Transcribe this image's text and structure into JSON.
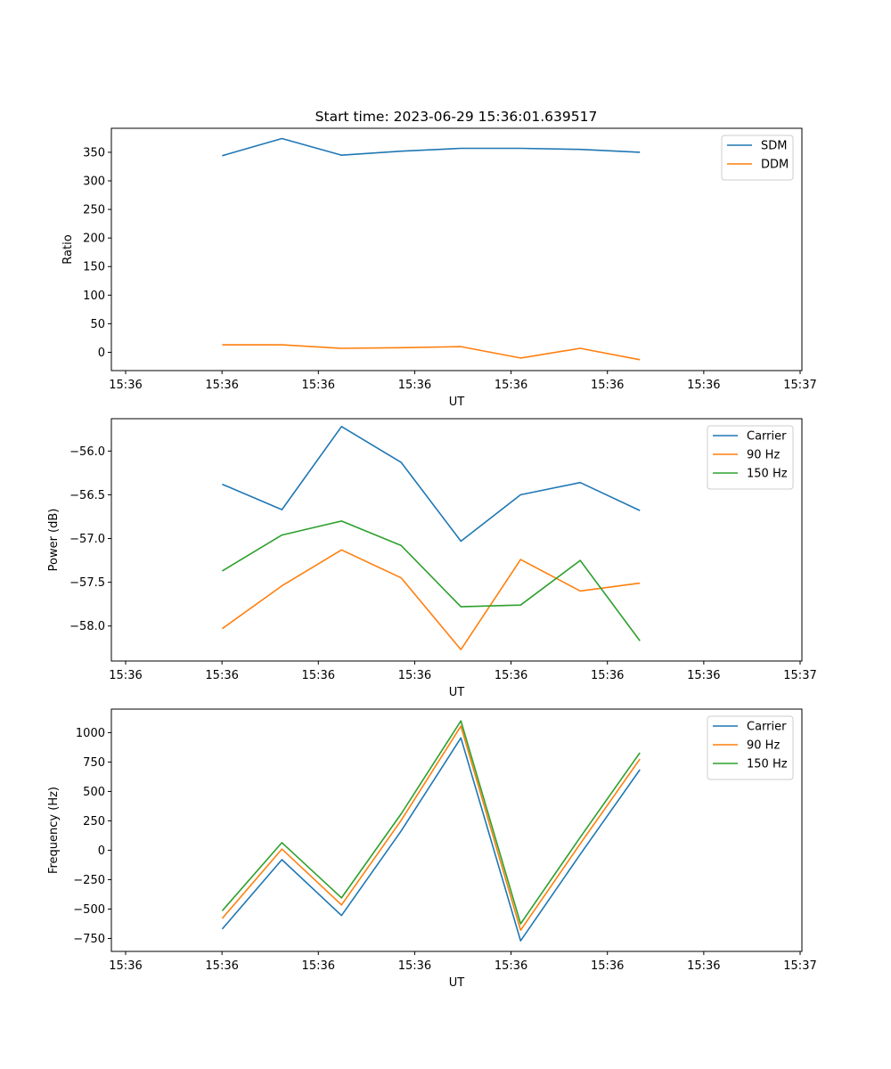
{
  "title": "Start time: 2023-06-29 15:36:01.639517",
  "chart_data": [
    {
      "type": "line",
      "title": "Start time: 2023-06-29 15:36:01.639517",
      "xlabel": "UT",
      "ylabel": "Ratio",
      "x": [
        "15:36:03.2",
        "15:36:03.9",
        "15:36:04.6",
        "15:36:05.3",
        "15:36:06.0",
        "15:36:06.7",
        "15:36:07.4",
        "15:36:08.1"
      ],
      "xlim": [
        "15:36:01.9",
        "15:36:10.0"
      ],
      "xtick_labels": [
        "15:36",
        "15:36",
        "15:36",
        "15:36",
        "15:36",
        "15:36",
        "15:36",
        "15:37"
      ],
      "ylim": [
        -32,
        392
      ],
      "yticks": [
        0,
        50,
        100,
        150,
        200,
        250,
        300,
        350
      ],
      "legend": "top-right",
      "series": [
        {
          "name": "SDM",
          "color": "#1f77b4",
          "values": [
            344,
            374,
            345,
            352,
            357,
            357,
            355,
            350
          ]
        },
        {
          "name": "DDM",
          "color": "#ff7f0e",
          "values": [
            13,
            13,
            7,
            8,
            10,
            -10,
            7,
            -13
          ]
        }
      ]
    },
    {
      "type": "line",
      "xlabel": "UT",
      "ylabel": "Power (dB)",
      "x": [
        "15:36:03.2",
        "15:36:03.9",
        "15:36:04.6",
        "15:36:05.3",
        "15:36:06.0",
        "15:36:06.7",
        "15:36:07.4",
        "15:36:08.1"
      ],
      "xlim": [
        "15:36:01.9",
        "15:36:10.0"
      ],
      "xtick_labels": [
        "15:36",
        "15:36",
        "15:36",
        "15:36",
        "15:36",
        "15:36",
        "15:36",
        "15:37"
      ],
      "ylim": [
        -58.4,
        -55.63
      ],
      "yticks": [
        -58.0,
        -57.5,
        -57.0,
        -56.5,
        -56.0
      ],
      "ytick_labels": [
        "−58.0",
        "−57.5",
        "−57.0",
        "−56.5",
        "−56.0"
      ],
      "legend": "top-right",
      "series": [
        {
          "name": "Carrier",
          "color": "#1f77b4",
          "values": [
            -56.38,
            -56.67,
            -55.72,
            -56.13,
            -57.03,
            -56.5,
            -56.36,
            -56.68
          ]
        },
        {
          "name": "90 Hz",
          "color": "#ff7f0e",
          "values": [
            -58.03,
            -57.54,
            -57.13,
            -57.45,
            -58.27,
            -57.24,
            -57.6,
            -57.51
          ]
        },
        {
          "name": "150 Hz",
          "color": "#2ca02c",
          "values": [
            -57.37,
            -56.96,
            -56.8,
            -57.08,
            -57.78,
            -57.76,
            -57.25,
            -58.17
          ]
        }
      ]
    },
    {
      "type": "line",
      "xlabel": "UT",
      "ylabel": "Frequency (Hz)",
      "x": [
        "15:36:03.2",
        "15:36:03.9",
        "15:36:04.6",
        "15:36:05.3",
        "15:36:06.0",
        "15:36:06.7",
        "15:36:07.4",
        "15:36:08.1"
      ],
      "xlim": [
        "15:36:01.9",
        "15:36:10.0"
      ],
      "xtick_labels": [
        "15:36",
        "15:36",
        "15:36",
        "15:36",
        "15:36",
        "15:36",
        "15:36",
        "15:37"
      ],
      "ylim": [
        -860,
        1200
      ],
      "yticks": [
        -750,
        -500,
        -250,
        0,
        250,
        500,
        750,
        1000
      ],
      "ytick_labels": [
        "−750",
        "−500",
        "−250",
        "0",
        "250",
        "500",
        "750",
        "1000"
      ],
      "legend": "top-right",
      "series": [
        {
          "name": "Carrier",
          "color": "#1f77b4",
          "values": [
            -670,
            -80,
            -555,
            165,
            955,
            -770,
            -35,
            685
          ]
        },
        {
          "name": "90 Hz",
          "color": "#ff7f0e",
          "values": [
            -580,
            10,
            -465,
            255,
            1055,
            -680,
            55,
            775
          ]
        },
        {
          "name": "150 Hz",
          "color": "#2ca02c",
          "values": [
            -515,
            65,
            -405,
            310,
            1100,
            -625,
            110,
            830
          ]
        }
      ]
    }
  ]
}
